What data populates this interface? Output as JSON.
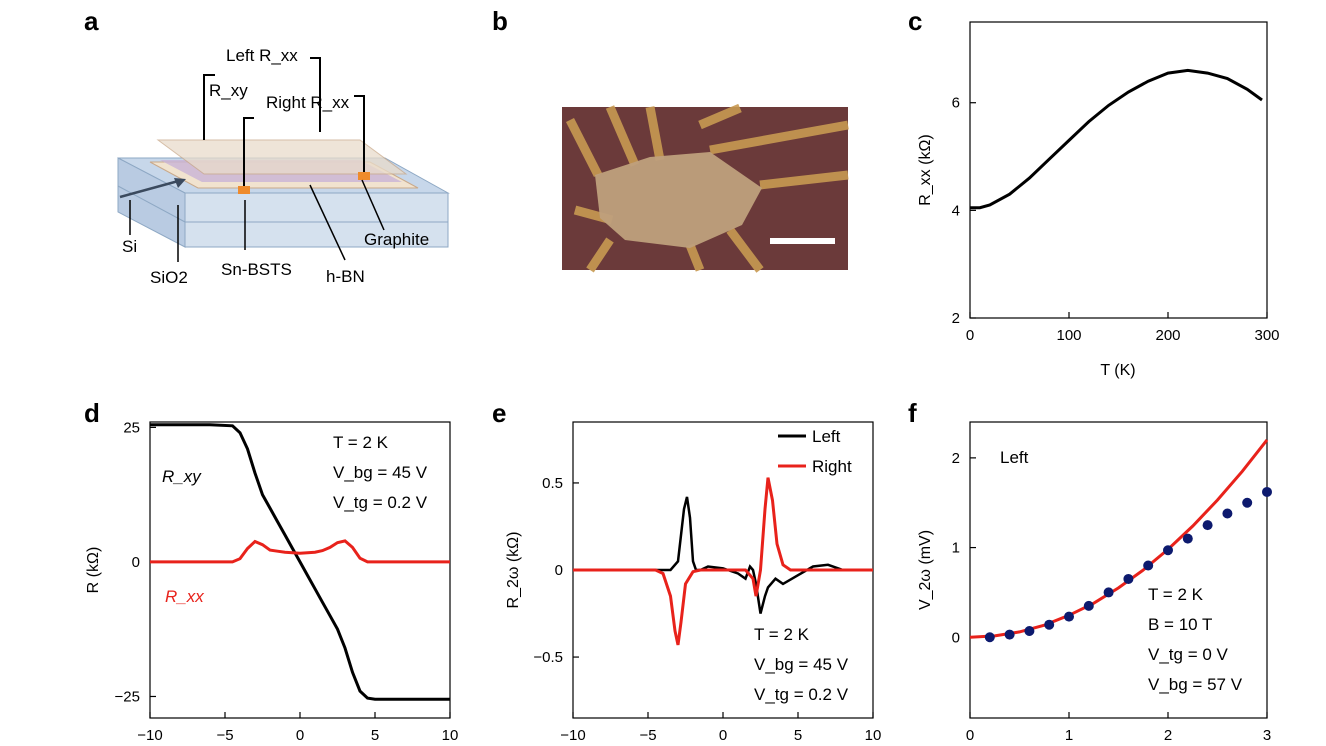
{
  "panels": {
    "a": "a",
    "b": "b",
    "c": "c",
    "d": "d",
    "e": "e",
    "f": "f"
  },
  "schematic": {
    "labels": {
      "left_rxx": "Left R_xx",
      "rxy": "R_xy",
      "right_rxx": "Right R_xx",
      "si": "Si",
      "sio2": "SiO2",
      "sn_bsts": "Sn-BSTS",
      "hbn": "h-BN",
      "graphite": "Graphite"
    }
  },
  "colors": {
    "black_series": "#000000",
    "red_series": "#e8221b",
    "blue_points": "#0d1a6e"
  },
  "chart_data": [
    {
      "id": "c",
      "type": "line",
      "xlabel": "T (K)",
      "ylabel": "R_xx (kΩ)",
      "xlim": [
        0,
        300
      ],
      "ylim": [
        2,
        7.5
      ],
      "xticks": [
        0,
        100,
        200,
        300
      ],
      "yticks": [
        2,
        4,
        6
      ],
      "series": [
        {
          "name": "R_xx",
          "color": "#000000",
          "x": [
            0,
            10,
            20,
            40,
            60,
            80,
            100,
            120,
            140,
            160,
            180,
            200,
            220,
            240,
            260,
            280,
            295
          ],
          "y": [
            4.05,
            4.05,
            4.1,
            4.3,
            4.6,
            4.95,
            5.3,
            5.65,
            5.95,
            6.2,
            6.4,
            6.55,
            6.6,
            6.55,
            6.45,
            6.25,
            6.05
          ]
        }
      ]
    },
    {
      "id": "d",
      "type": "line",
      "ylabel": "R (kΩ)",
      "xlim": [
        -10,
        10
      ],
      "ylim": [
        -29,
        26
      ],
      "xticks": [
        -10,
        -5,
        0,
        5,
        10
      ],
      "yticks": [
        -25,
        0,
        25
      ],
      "annotations": {
        "t": "T = 2 K",
        "vbg": "V_bg = 45 V",
        "vtg": "V_tg = 0.2 V"
      },
      "series": [
        {
          "name": "R_xy",
          "color": "#000000",
          "x": [
            -10,
            -6,
            -4.5,
            -4,
            -3.5,
            -3,
            -2.5,
            -2,
            -1.5,
            -1,
            -0.5,
            0,
            0.5,
            1,
            1.5,
            2,
            2.5,
            3,
            3.5,
            4,
            4.5,
            5,
            7,
            10
          ],
          "y": [
            25.5,
            25.5,
            25.3,
            24,
            21,
            16.5,
            12.5,
            10,
            7.5,
            5,
            2.5,
            0,
            -2.5,
            -5,
            -7.5,
            -10,
            -12.5,
            -16,
            -20.5,
            -24,
            -25.3,
            -25.5,
            -25.5,
            -25.5
          ]
        },
        {
          "name": "R_xx",
          "color": "#e8221b",
          "x": [
            -10,
            -4.5,
            -4,
            -3.5,
            -3,
            -2.5,
            -2,
            -1.5,
            -1,
            0,
            1,
            1.5,
            2,
            2.5,
            3,
            3.5,
            4,
            4.5,
            10
          ],
          "y": [
            0,
            0,
            0.6,
            2.5,
            3.8,
            3.2,
            2.2,
            2.0,
            1.8,
            1.6,
            1.8,
            2.1,
            2.7,
            3.6,
            3.9,
            2.7,
            0.7,
            0,
            0
          ]
        }
      ]
    },
    {
      "id": "e",
      "type": "line",
      "ylabel": "R_2ω (kΩ)",
      "xlim": [
        -10,
        10
      ],
      "ylim": [
        -0.85,
        0.85
      ],
      "xticks": [
        -10,
        -5,
        0,
        5,
        10
      ],
      "yticks": [
        -0.5,
        0,
        0.5
      ],
      "legend": [
        "Left",
        "Right"
      ],
      "annotations": {
        "t": "T = 2 K",
        "vbg": "V_bg = 45 V",
        "vtg": "V_tg = 0.2 V"
      },
      "series": [
        {
          "name": "Left",
          "color": "#000000",
          "x": [
            -10,
            -4,
            -3.5,
            -3,
            -2.8,
            -2.6,
            -2.4,
            -2.2,
            -2,
            -1.8,
            -1.5,
            -1,
            0,
            1,
            1.5,
            1.8,
            2,
            2.2,
            2.5,
            2.8,
            3,
            3.5,
            4,
            5,
            6,
            7,
            8,
            10
          ],
          "y": [
            0,
            0,
            0,
            0.05,
            0.2,
            0.35,
            0.42,
            0.3,
            0.05,
            0,
            0,
            0.02,
            0.01,
            -0.02,
            -0.05,
            0.02,
            0,
            -0.08,
            -0.25,
            -0.15,
            -0.1,
            -0.05,
            -0.08,
            -0.03,
            0.02,
            0.03,
            0,
            0
          ]
        },
        {
          "name": "Right",
          "color": "#e8221b",
          "x": [
            -10,
            -4.5,
            -4,
            -3.5,
            -3.2,
            -3,
            -2.8,
            -2.5,
            -2,
            -1.5,
            -1,
            0,
            1,
            1.5,
            2,
            2.2,
            2.5,
            2.8,
            3,
            3.3,
            3.6,
            4,
            4.5,
            5,
            10
          ],
          "y": [
            0,
            0,
            -0.02,
            -0.15,
            -0.35,
            -0.43,
            -0.3,
            -0.08,
            -0.01,
            0,
            0,
            0,
            0,
            0,
            -0.05,
            -0.15,
            0,
            0.35,
            0.53,
            0.4,
            0.15,
            0.03,
            0,
            0,
            0
          ]
        }
      ]
    },
    {
      "id": "f",
      "type": "scatter",
      "ylabel": "V_2ω (mV)",
      "xlim": [
        0,
        3
      ],
      "ylim": [
        -0.9,
        2.4
      ],
      "xticks": [
        0,
        1,
        2,
        3
      ],
      "yticks": [
        0,
        1,
        2
      ],
      "inset_label": "Left",
      "annotations": {
        "t": "T = 2 K",
        "b": "B = 10 T",
        "vtg": "V_tg = 0 V",
        "vbg": "V_bg = 57 V"
      },
      "series": [
        {
          "name": "data",
          "color": "#0d1a6e",
          "x": [
            0.2,
            0.4,
            0.6,
            0.8,
            1.0,
            1.2,
            1.4,
            1.6,
            1.8,
            2.0,
            2.2,
            2.4,
            2.6,
            2.8,
            3.0
          ],
          "y": [
            0.0,
            0.03,
            0.07,
            0.14,
            0.23,
            0.35,
            0.5,
            0.65,
            0.8,
            0.97,
            1.1,
            1.25,
            1.38,
            1.5,
            1.62
          ]
        },
        {
          "name": "fit",
          "color": "#e8221b",
          "x": [
            0,
            0.25,
            0.5,
            0.75,
            1.0,
            1.25,
            1.5,
            1.75,
            2.0,
            2.25,
            2.5,
            2.75,
            3.0
          ],
          "y": [
            0,
            0.015,
            0.06,
            0.135,
            0.245,
            0.38,
            0.55,
            0.75,
            0.98,
            1.24,
            1.53,
            1.85,
            2.2
          ]
        }
      ]
    }
  ]
}
